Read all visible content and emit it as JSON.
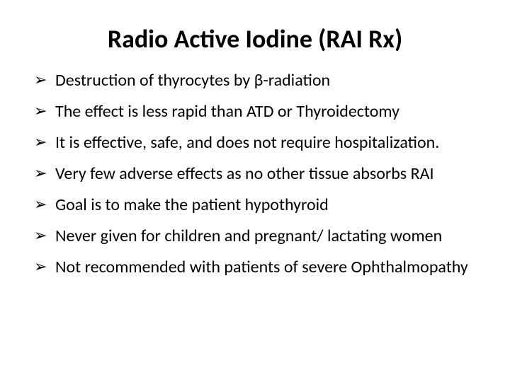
{
  "slide": {
    "title": "Radio Active Iodine (RAI Rx)",
    "title_fontsize": 36,
    "title_weight": 700,
    "bullet_fontsize": 24,
    "bullet_marker": "➢",
    "background_color": "#ffffff",
    "text_color": "#000000",
    "bullets": [
      "Destruction of thyrocytes by β-radiation",
      "The effect is less rapid than ATD or Thyroidectomy",
      "It is effective, safe, and does not require hospitalization.",
      "Very few adverse effects as no other tissue absorbs RAI",
      "Goal is to make the patient hypothyroid",
      "Never given for children and pregnant/ lactating women",
      "Not recommended with patients of severe Ophthalmopathy"
    ]
  }
}
